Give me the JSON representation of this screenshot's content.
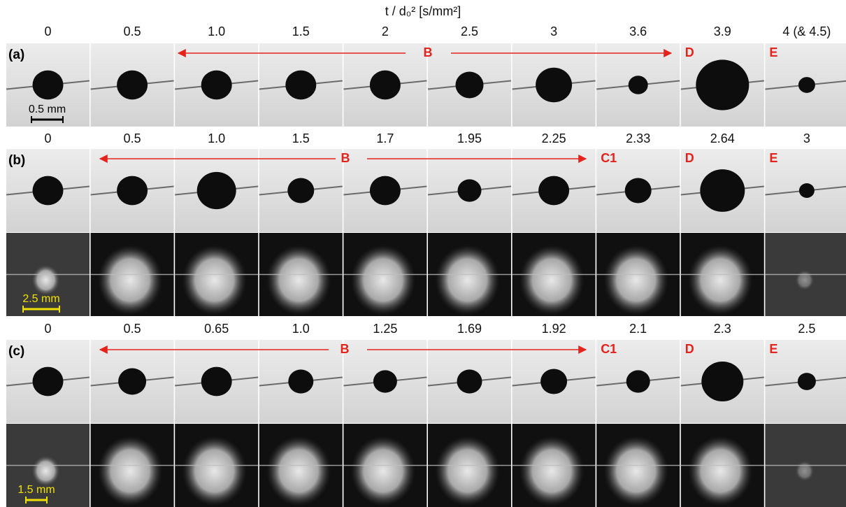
{
  "header": {
    "title": "t / d₀² [s/mm²]"
  },
  "panels": [
    {
      "label": "(a)",
      "times": [
        "0",
        "0.5",
        "1.0",
        "1.5",
        "2",
        "2.5",
        "3",
        "3.6",
        "3.9",
        "4 (& 4.5)"
      ],
      "arrow_label": "B",
      "stages": [
        null,
        null,
        null,
        null,
        null,
        null,
        null,
        null,
        "D",
        "E"
      ],
      "scale": "0.5 mm"
    },
    {
      "label": "(b)",
      "times": [
        "0",
        "0.5",
        "1.0",
        "1.5",
        "1.7",
        "1.95",
        "2.25",
        "2.33",
        "2.64",
        "3"
      ],
      "arrow_label": "B",
      "stages": [
        null,
        null,
        null,
        null,
        null,
        null,
        null,
        "C1",
        "D",
        "E"
      ],
      "scale": "2.5 mm"
    },
    {
      "label": "(c)",
      "times": [
        "0",
        "0.5",
        "0.65",
        "1.0",
        "1.25",
        "1.69",
        "1.92",
        "2.1",
        "2.3",
        "2.5"
      ],
      "arrow_label": "B",
      "stages": [
        null,
        null,
        null,
        null,
        null,
        null,
        null,
        "C1",
        "D",
        "E"
      ],
      "scale": "1.5 mm"
    }
  ]
}
